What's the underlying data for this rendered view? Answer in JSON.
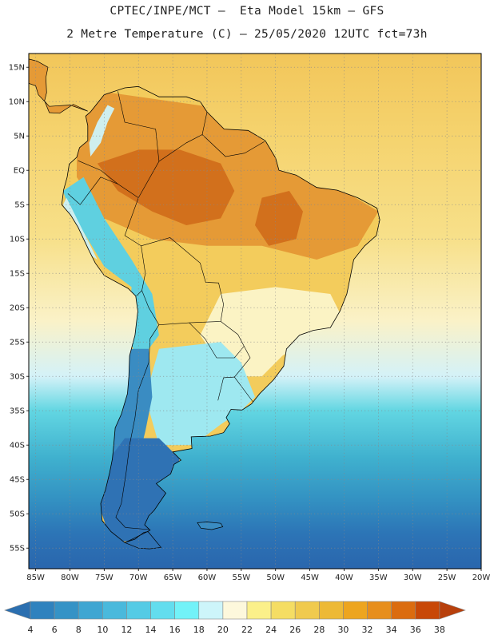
{
  "title": {
    "line1": "CPTEC/INPE/MCT –  Eta Model 15km – GFS",
    "line2": "2 Metre Temperature (C) – 25/05/2020 12UTC fct=73h"
  },
  "map": {
    "lat_ticks": [
      "15N",
      "10N",
      "5N",
      "EQ",
      "5S",
      "10S",
      "15S",
      "20S",
      "25S",
      "30S",
      "35S",
      "40S",
      "45S",
      "50S",
      "55S"
    ],
    "lon_ticks": [
      "85W",
      "80W",
      "75W",
      "70W",
      "65W",
      "60W",
      "55W",
      "50W",
      "45W",
      "40W",
      "35W",
      "30W",
      "25W",
      "20W"
    ],
    "lat_range": [
      17,
      -58
    ],
    "lon_range": [
      -86,
      -20
    ],
    "ocean_gradient": [
      {
        "lat": 17,
        "color": "#f2c65a"
      },
      {
        "lat": 5,
        "color": "#f5d36e"
      },
      {
        "lat": -10,
        "color": "#f7e08a"
      },
      {
        "lat": -22,
        "color": "#faf2c8"
      },
      {
        "lat": -30,
        "color": "#d4f2f8"
      },
      {
        "lat": -35,
        "color": "#62d6e2"
      },
      {
        "lat": -42,
        "color": "#3fb0ce"
      },
      {
        "lat": -48,
        "color": "#3391c2"
      },
      {
        "lat": -53,
        "color": "#2c74b6"
      },
      {
        "lat": -58,
        "color": "#2a66ad"
      }
    ],
    "land_colors": {
      "tropical": "#e59a36",
      "hot_core": "#d2701c",
      "savanna": "#f3cc5c",
      "south_brazil": "#fbf3c4",
      "pampas": "#9ee8f0",
      "andes_north": "#5fd0e0",
      "andes_south": "#3a8cc2",
      "patagonia": "#2f72b4",
      "coast_cool": "#cfefee"
    }
  },
  "colorbar": {
    "labels": [
      "4",
      "6",
      "8",
      "10",
      "12",
      "14",
      "16",
      "18",
      "20",
      "22",
      "24",
      "26",
      "28",
      "30",
      "32",
      "34",
      "36",
      "38"
    ],
    "colors": [
      "#2b6fb0",
      "#2f82be",
      "#3593c6",
      "#3fa6d2",
      "#4ab9dc",
      "#55cbe5",
      "#63ddee",
      "#72f2f8",
      "#cdf5fa",
      "#fdf8dc",
      "#fbf08a",
      "#f5dd63",
      "#f0ca4e",
      "#edb936",
      "#eda51f",
      "#e78e1c",
      "#db6c0f",
      "#c84807",
      "#b8400c"
    ]
  }
}
